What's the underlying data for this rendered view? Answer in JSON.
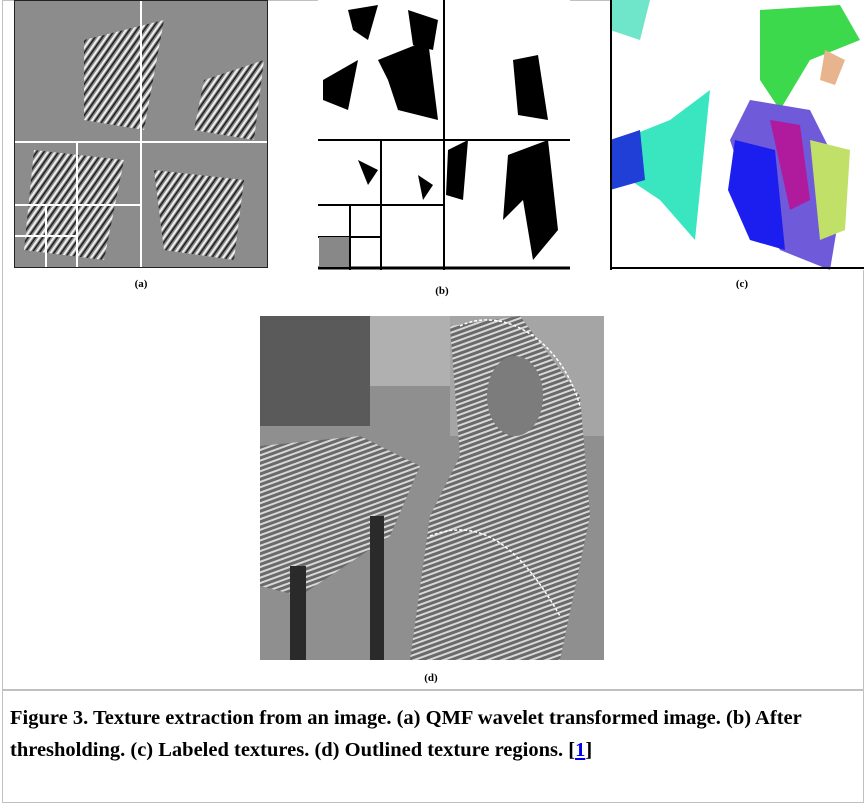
{
  "figure": {
    "panels": [
      {
        "label": "(a)"
      },
      {
        "label": "(b)"
      },
      {
        "label": "(c)"
      },
      {
        "label": "(d)"
      }
    ],
    "caption": {
      "text": "Figure 3. Texture extraction from an image. (a) QMF wavelet transformed image. (b) After thresholding. (c) Labeled textures. (d) Outlined texture regions. [",
      "link": "1",
      "close": "]"
    }
  }
}
